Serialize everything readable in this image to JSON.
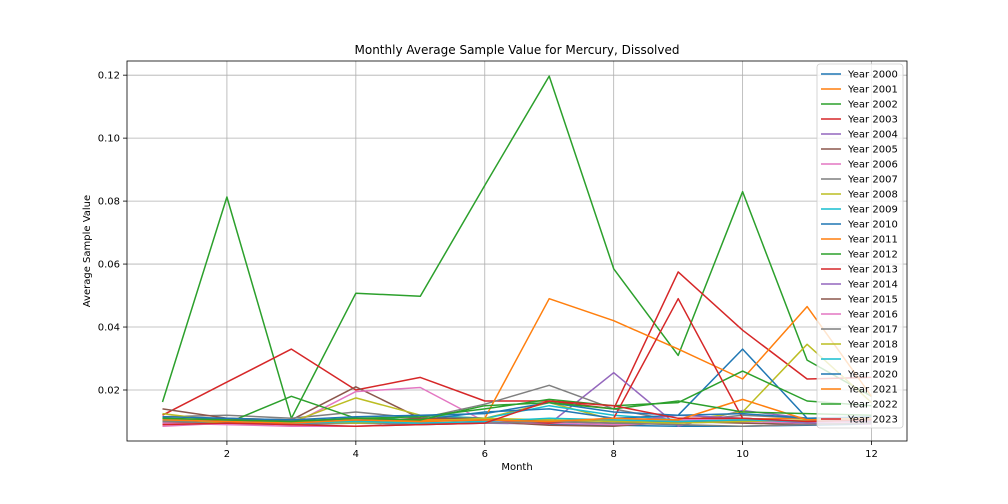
{
  "chart_data": {
    "type": "line",
    "title": "Monthly Average Sample Value for Mercury, Dissolved",
    "xlabel": "Month",
    "ylabel": "Average Sample Value",
    "xlim": [
      0.45,
      12.55
    ],
    "ylim": [
      0.0038,
      0.1245
    ],
    "xticks": [
      2,
      4,
      6,
      8,
      10,
      12
    ],
    "yticks": [
      0.02,
      0.04,
      0.06,
      0.08,
      0.1,
      0.12
    ],
    "ytick_labels": [
      "0.02",
      "0.04",
      "0.06",
      "0.08",
      "0.10",
      "0.12"
    ],
    "grid": true,
    "legend": "top-right",
    "x": [
      1,
      2,
      3,
      4,
      5,
      6,
      7,
      8,
      9,
      10,
      11,
      12
    ],
    "series": [
      {
        "name": "Year 2000",
        "color": "#1f77b4",
        "values": [
          0.0105,
          0.0098,
          0.0095,
          0.01,
          0.0095,
          0.0098,
          0.0092,
          0.0088,
          0.0085,
          0.0085,
          0.0088,
          0.0092
        ]
      },
      {
        "name": "Year 2001",
        "color": "#ff7f0e",
        "values": [
          0.011,
          0.0102,
          0.01,
          0.0105,
          0.0102,
          0.0108,
          0.0105,
          0.0102,
          0.01,
          0.0108,
          0.011,
          0.0112
        ]
      },
      {
        "name": "Year 2002",
        "color": "#2ca02c",
        "values": [
          0.0162,
          0.0813,
          0.011,
          0.0507,
          0.0498,
          0.085,
          0.1197,
          0.0585,
          0.031,
          0.083,
          0.0295,
          0.018
        ]
      },
      {
        "name": "Year 2003",
        "color": "#d62728",
        "values": [
          0.012,
          0.0225,
          0.033,
          0.02,
          0.024,
          0.0165,
          0.0165,
          0.014,
          0.0575,
          0.039,
          0.0235,
          0.024
        ]
      },
      {
        "name": "Year 2004",
        "color": "#9467bd",
        "values": [
          0.01,
          0.0105,
          0.01,
          0.011,
          0.0095,
          0.0095,
          0.0092,
          0.0255,
          0.0085,
          0.0135,
          0.011,
          0.0105
        ]
      },
      {
        "name": "Year 2005",
        "color": "#8c564b",
        "values": [
          0.0095,
          0.0102,
          0.0105,
          0.021,
          0.011,
          0.01,
          0.0088,
          0.0085,
          0.01,
          0.0102,
          0.01,
          0.0098
        ]
      },
      {
        "name": "Year 2006",
        "color": "#e377c2",
        "values": [
          0.0085,
          0.0095,
          0.009,
          0.0195,
          0.0208,
          0.01,
          0.0095,
          0.009,
          0.0095,
          0.01,
          0.0095,
          0.0092
        ]
      },
      {
        "name": "Year 2007",
        "color": "#7f7f7f",
        "values": [
          0.0115,
          0.012,
          0.011,
          0.013,
          0.011,
          0.0155,
          0.0215,
          0.014,
          0.01,
          0.012,
          0.011,
          0.0105
        ]
      },
      {
        "name": "Year 2008",
        "color": "#bcbd22",
        "values": [
          0.0125,
          0.01,
          0.0098,
          0.0175,
          0.012,
          0.011,
          0.016,
          0.0105,
          0.01,
          0.013,
          0.0345,
          0.016
        ]
      },
      {
        "name": "Year 2009",
        "color": "#17becf",
        "values": [
          0.01,
          0.0105,
          0.0095,
          0.01,
          0.012,
          0.011,
          0.015,
          0.012,
          0.0105,
          0.011,
          0.01,
          0.0098
        ]
      },
      {
        "name": "Year 2010",
        "color": "#1f77b4",
        "values": [
          0.0105,
          0.011,
          0.01,
          0.011,
          0.0105,
          0.013,
          0.014,
          0.011,
          0.012,
          0.033,
          0.011,
          0.0105
        ]
      },
      {
        "name": "Year 2011",
        "color": "#ff7f0e",
        "values": [
          0.011,
          0.01,
          0.0095,
          0.01,
          0.0105,
          0.011,
          0.049,
          0.042,
          0.033,
          0.0235,
          0.0465,
          0.018
        ]
      },
      {
        "name": "Year 2012",
        "color": "#2ca02c",
        "values": [
          0.011,
          0.0095,
          0.018,
          0.011,
          0.0115,
          0.014,
          0.017,
          0.015,
          0.016,
          0.026,
          0.0165,
          0.015
        ]
      },
      {
        "name": "Year 2013",
        "color": "#d62728",
        "values": [
          0.0095,
          0.0105,
          0.01,
          0.0095,
          0.01,
          0.0105,
          0.0095,
          0.011,
          0.049,
          0.011,
          0.01,
          0.0095
        ]
      },
      {
        "name": "Year 2014",
        "color": "#9467bd",
        "values": [
          0.0105,
          0.01,
          0.0095,
          0.01,
          0.0095,
          0.0095,
          0.01,
          0.0095,
          0.012,
          0.011,
          0.0095,
          0.01
        ]
      },
      {
        "name": "Year 2015",
        "color": "#8c564b",
        "values": [
          0.014,
          0.011,
          0.0105,
          0.01,
          0.011,
          0.011,
          0.01,
          0.0095,
          0.01,
          0.0095,
          0.009,
          0.0095
        ]
      },
      {
        "name": "Year 2016",
        "color": "#e377c2",
        "values": [
          0.0095,
          0.009,
          0.0085,
          0.0085,
          0.009,
          0.0095,
          0.01,
          0.011,
          0.0105,
          0.011,
          0.01,
          0.0095
        ]
      },
      {
        "name": "Year 2017",
        "color": "#7f7f7f",
        "values": [
          0.01,
          0.0095,
          0.009,
          0.0095,
          0.009,
          0.0095,
          0.01,
          0.0095,
          0.009,
          0.0085,
          0.009,
          0.0095
        ]
      },
      {
        "name": "Year 2018",
        "color": "#bcbd22",
        "values": [
          0.011,
          0.0095,
          0.01,
          0.0095,
          0.01,
          0.011,
          0.0105,
          0.01,
          0.0095,
          0.01,
          0.0105,
          0.011
        ]
      },
      {
        "name": "Year 2019",
        "color": "#17becf",
        "values": [
          0.0105,
          0.01,
          0.0095,
          0.01,
          0.0095,
          0.01,
          0.011,
          0.0105,
          0.01,
          0.0105,
          0.01,
          0.0105
        ]
      },
      {
        "name": "Year 2020",
        "color": "#1f77b4",
        "values": [
          0.0115,
          0.011,
          0.0105,
          0.0115,
          0.012,
          0.0125,
          0.016,
          0.013,
          0.012,
          0.0125,
          0.011,
          0.0115
        ]
      },
      {
        "name": "Year 2021",
        "color": "#ff7f0e",
        "values": [
          0.0105,
          0.01,
          0.0095,
          0.0105,
          0.01,
          0.0105,
          0.01,
          0.011,
          0.0105,
          0.017,
          0.0105,
          0.011
        ]
      },
      {
        "name": "Year 2022",
        "color": "#2ca02c",
        "values": [
          0.011,
          0.0105,
          0.01,
          0.011,
          0.0105,
          0.015,
          0.016,
          0.014,
          0.0165,
          0.013,
          0.0125,
          0.012
        ]
      },
      {
        "name": "Year 2023",
        "color": "#d62728",
        "values": [
          0.009,
          0.0095,
          0.009,
          0.0085,
          0.009,
          0.0095,
          0.0165,
          0.015,
          0.011,
          0.011,
          0.01,
          0.0105
        ]
      }
    ]
  }
}
